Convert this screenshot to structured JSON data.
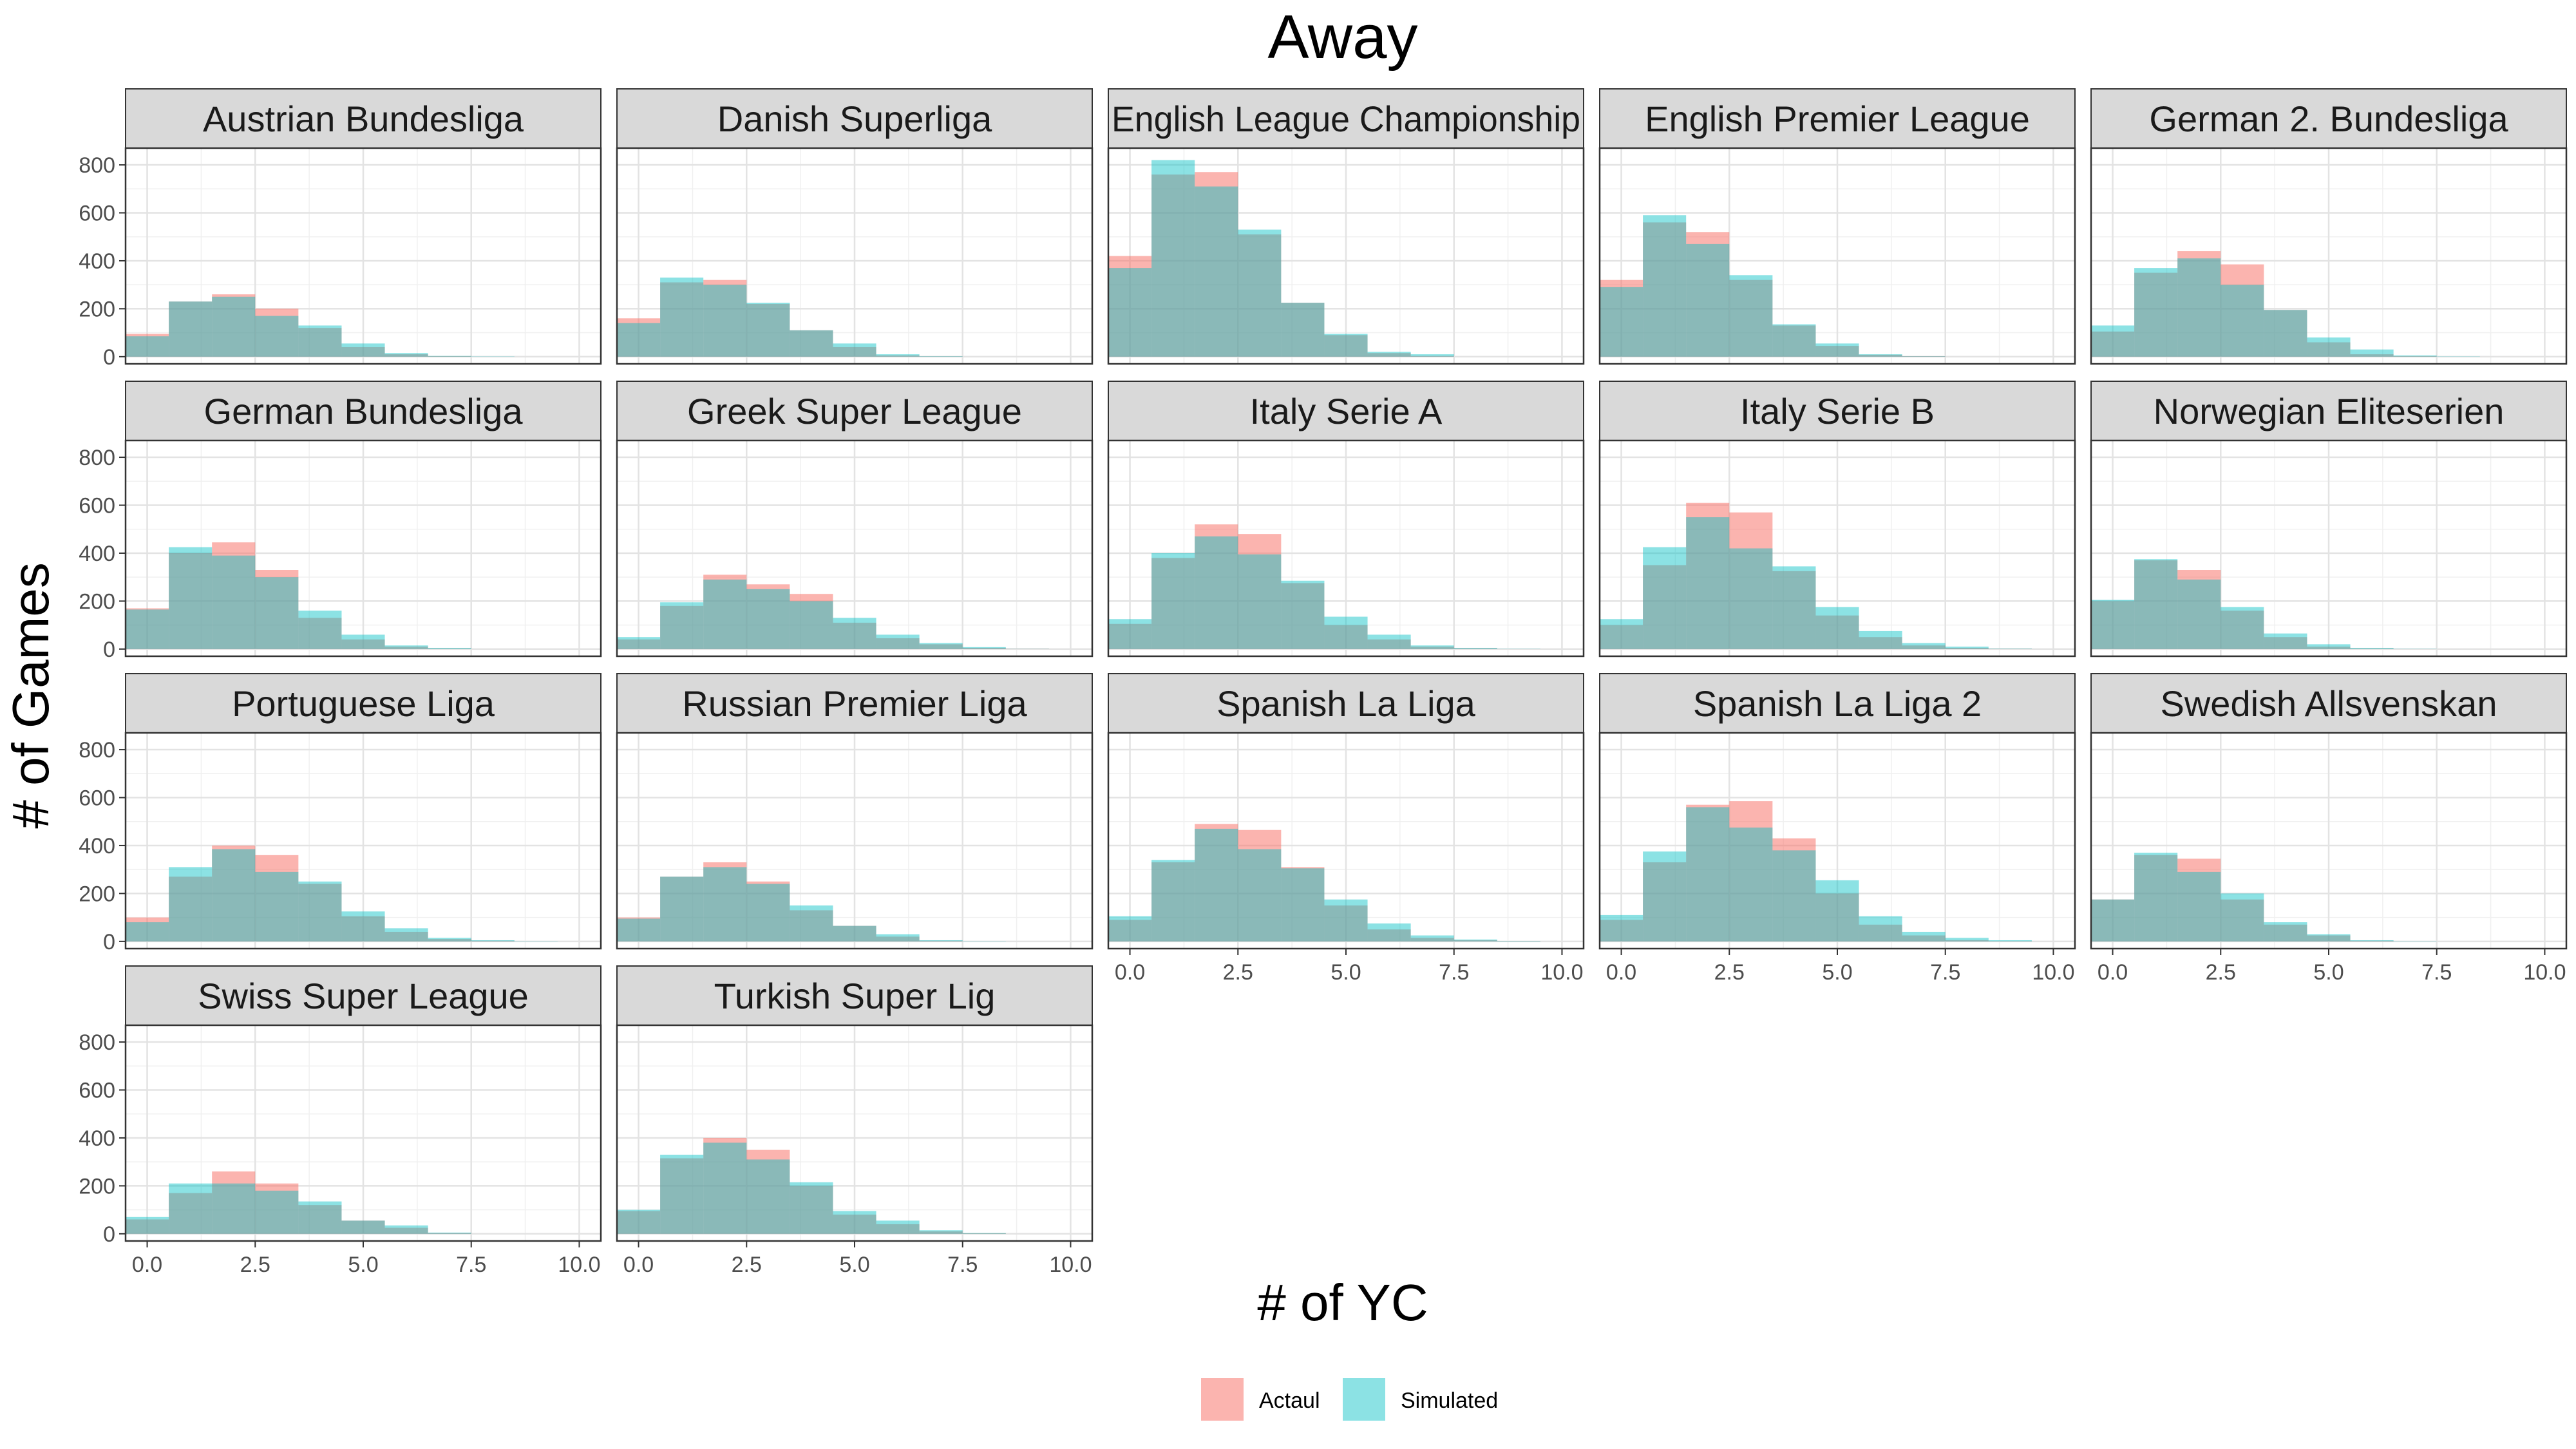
{
  "chart_data": {
    "type": "bar",
    "title": "Away",
    "xlabel": "# of YC",
    "ylabel": "# of Games",
    "xlim": [
      -0.5,
      10.5
    ],
    "ylim": [
      -30,
      870
    ],
    "x_ticks": [
      0,
      2.5,
      5,
      7.5,
      10
    ],
    "x_tick_labels": [
      "0.0",
      "2.5",
      "5.0",
      "7.5",
      "10.0"
    ],
    "y_ticks": [
      0,
      200,
      400,
      600,
      800
    ],
    "y_tick_labels": [
      "0",
      "200",
      "400",
      "600",
      "800"
    ],
    "bins": [
      0,
      1,
      2,
      3,
      4,
      5,
      6,
      7,
      8,
      9,
      10
    ],
    "grid": true,
    "legend_position": "bottom",
    "legend": [
      {
        "label": "Actaul",
        "color": "#f8766d"
      },
      {
        "label": "Simulated",
        "color": "#00bfc4"
      }
    ],
    "panels": [
      {
        "name": "Austrian Bundesliga",
        "actual": [
          95,
          230,
          260,
          200,
          120,
          40,
          10,
          2,
          0,
          0,
          0
        ],
        "simulated": [
          85,
          230,
          250,
          170,
          130,
          55,
          15,
          3,
          1,
          0,
          0
        ]
      },
      {
        "name": "Danish Superliga",
        "actual": [
          160,
          310,
          320,
          220,
          110,
          40,
          5,
          1,
          0,
          0,
          0
        ],
        "simulated": [
          140,
          330,
          300,
          225,
          110,
          55,
          10,
          2,
          0,
          0,
          0
        ]
      },
      {
        "name": "English League Championship",
        "actual": [
          420,
          760,
          770,
          510,
          225,
          90,
          15,
          3,
          0,
          0,
          0
        ],
        "simulated": [
          370,
          820,
          710,
          530,
          225,
          95,
          20,
          10,
          0,
          0,
          0
        ]
      },
      {
        "name": "English Premier League",
        "actual": [
          320,
          560,
          520,
          320,
          130,
          45,
          8,
          2,
          0,
          0,
          0
        ],
        "simulated": [
          290,
          590,
          470,
          340,
          135,
          55,
          10,
          2,
          0,
          0,
          0
        ]
      },
      {
        "name": "German 2. Bundesliga",
        "actual": [
          105,
          350,
          440,
          385,
          195,
          60,
          10,
          2,
          0,
          0,
          0
        ],
        "simulated": [
          130,
          370,
          410,
          300,
          195,
          80,
          30,
          5,
          1,
          0,
          0
        ]
      },
      {
        "name": "German Bundesliga",
        "actual": [
          170,
          400,
          445,
          330,
          130,
          40,
          10,
          2,
          0,
          0,
          0
        ],
        "simulated": [
          165,
          425,
          390,
          300,
          160,
          60,
          15,
          5,
          0,
          0,
          0
        ]
      },
      {
        "name": "Greek Super League",
        "actual": [
          40,
          180,
          310,
          270,
          230,
          110,
          45,
          20,
          5,
          1,
          0
        ],
        "simulated": [
          50,
          195,
          290,
          250,
          200,
          130,
          60,
          25,
          8,
          1,
          0
        ]
      },
      {
        "name": "Italy Serie A",
        "actual": [
          105,
          380,
          520,
          480,
          275,
          100,
          40,
          10,
          3,
          0,
          0
        ],
        "simulated": [
          125,
          400,
          470,
          395,
          285,
          135,
          60,
          15,
          5,
          1,
          0
        ]
      },
      {
        "name": "Italy Serie B",
        "actual": [
          100,
          350,
          610,
          570,
          325,
          140,
          50,
          15,
          5,
          1,
          0
        ],
        "simulated": [
          125,
          425,
          550,
          420,
          345,
          175,
          75,
          25,
          10,
          2,
          0
        ]
      },
      {
        "name": "Norwegian Eliteserien",
        "actual": [
          200,
          370,
          330,
          160,
          50,
          10,
          2,
          0,
          0,
          0,
          0
        ],
        "simulated": [
          205,
          375,
          290,
          175,
          65,
          20,
          5,
          1,
          0,
          0,
          0
        ]
      },
      {
        "name": "Portuguese Liga",
        "actual": [
          100,
          270,
          400,
          360,
          240,
          105,
          40,
          10,
          3,
          0,
          0
        ],
        "simulated": [
          80,
          310,
          385,
          290,
          250,
          125,
          55,
          15,
          5,
          1,
          0
        ]
      },
      {
        "name": "Russian Premier Liga",
        "actual": [
          100,
          270,
          330,
          250,
          130,
          65,
          20,
          3,
          0,
          0,
          0
        ],
        "simulated": [
          95,
          270,
          310,
          240,
          150,
          65,
          30,
          5,
          1,
          0,
          0
        ]
      },
      {
        "name": "Spanish La Liga",
        "actual": [
          90,
          330,
          490,
          465,
          310,
          150,
          50,
          15,
          5,
          1,
          0
        ],
        "simulated": [
          105,
          340,
          470,
          385,
          305,
          175,
          75,
          25,
          8,
          2,
          0
        ]
      },
      {
        "name": "Spanish La Liga 2",
        "actual": [
          90,
          330,
          570,
          585,
          430,
          200,
          70,
          25,
          5,
          1,
          0
        ],
        "simulated": [
          110,
          375,
          560,
          475,
          380,
          255,
          105,
          40,
          15,
          5,
          0
        ]
      },
      {
        "name": "Swedish Allsvenskan",
        "actual": [
          175,
          360,
          345,
          175,
          70,
          25,
          3,
          0,
          0,
          0,
          0
        ],
        "simulated": [
          175,
          370,
          290,
          200,
          80,
          30,
          5,
          1,
          0,
          0,
          0
        ]
      },
      {
        "name": "Swiss Super League",
        "actual": [
          60,
          170,
          260,
          210,
          120,
          55,
          25,
          3,
          0,
          0,
          0
        ],
        "simulated": [
          70,
          210,
          210,
          180,
          135,
          55,
          35,
          5,
          0,
          0,
          0
        ]
      },
      {
        "name": "Turkish Super Lig",
        "actual": [
          95,
          315,
          400,
          350,
          200,
          80,
          40,
          10,
          2,
          0,
          0
        ],
        "simulated": [
          100,
          330,
          380,
          310,
          215,
          95,
          55,
          15,
          3,
          0,
          0
        ]
      }
    ]
  }
}
